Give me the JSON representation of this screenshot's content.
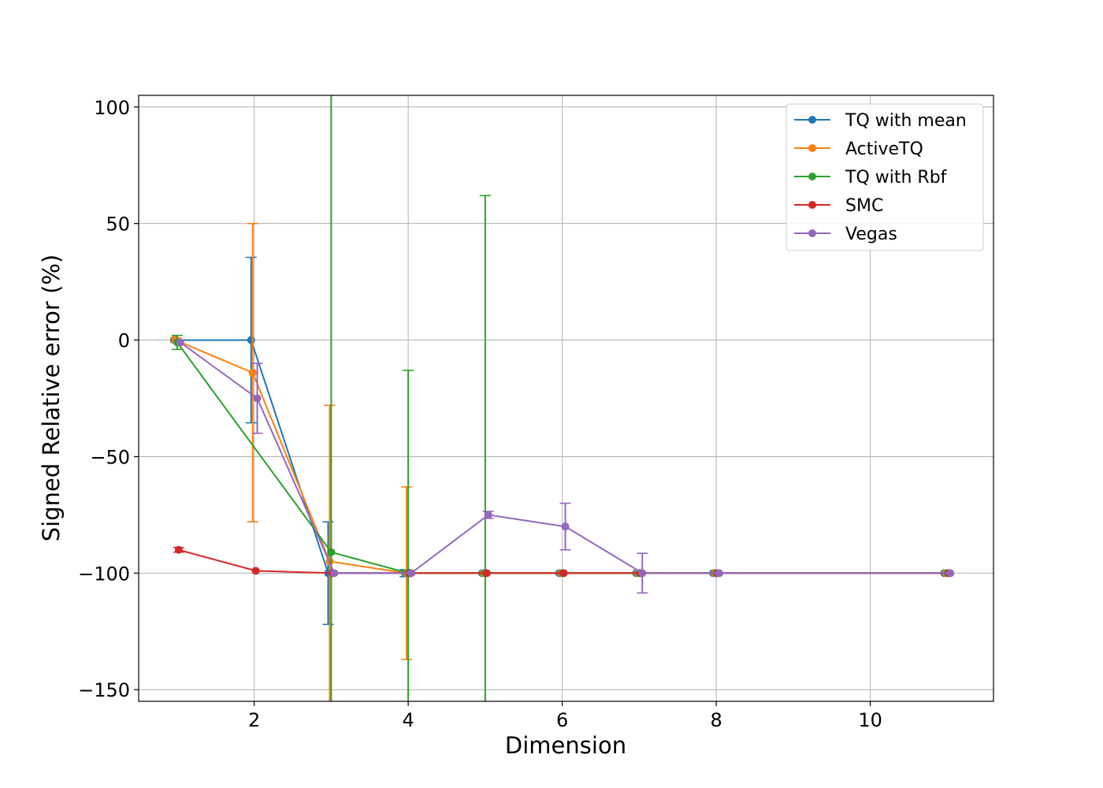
{
  "chart_data": {
    "type": "line",
    "title": "",
    "xlabel": "Dimension",
    "ylabel": "Signed Relative error (%)",
    "xlim": [
      0.5,
      11.6
    ],
    "ylim": [
      -155,
      105
    ],
    "xticks": [
      2,
      4,
      6,
      8,
      10
    ],
    "yticks": [
      100,
      50,
      0,
      -50,
      -100,
      -150
    ],
    "grid": true,
    "legend_position": "top-right",
    "series": [
      {
        "name": "TQ with mean",
        "color": "#1f77b4",
        "points": [
          {
            "x": 0.96,
            "y": 0,
            "err": 0
          },
          {
            "x": 1.96,
            "y": 0,
            "err": 35.5
          },
          {
            "x": 2.96,
            "y": -100,
            "err": 22
          },
          {
            "x": 3.96,
            "y": -100,
            "err": 1.5
          },
          {
            "x": 4.96,
            "y": -100,
            "err": 0
          },
          {
            "x": 5.96,
            "y": -100,
            "err": 0
          },
          {
            "x": 6.96,
            "y": -100,
            "err": 0
          },
          {
            "x": 7.96,
            "y": -100,
            "err": 0
          },
          {
            "x": 10.96,
            "y": -100,
            "err": 0
          }
        ]
      },
      {
        "name": "ActiveTQ",
        "color": "#ff7f0e",
        "points": [
          {
            "x": 0.98,
            "y": 0,
            "err": 1
          },
          {
            "x": 1.98,
            "y": -14,
            "err": 64
          },
          {
            "x": 2.98,
            "y": -95,
            "err": 67
          },
          {
            "x": 3.98,
            "y": -100,
            "err": 37
          },
          {
            "x": 4.98,
            "y": -100,
            "err": 0
          },
          {
            "x": 5.98,
            "y": -100,
            "err": 0
          },
          {
            "x": 6.98,
            "y": -100,
            "err": 0
          },
          {
            "x": 7.98,
            "y": -100,
            "err": 0
          },
          {
            "x": 10.98,
            "y": -100,
            "err": 0
          }
        ]
      },
      {
        "name": "TQ with Rbf",
        "color": "#2ca02c",
        "points": [
          {
            "x": 1.0,
            "y": -1,
            "err": 3
          },
          {
            "x": 3.0,
            "y": -91,
            "err": 200
          },
          {
            "x": 4.0,
            "y": -100,
            "err": 87
          },
          {
            "x": 5.0,
            "y": -100,
            "err": 162
          },
          {
            "x": 6.0,
            "y": -100,
            "err": 0
          },
          {
            "x": 7.0,
            "y": -100,
            "err": 0
          },
          {
            "x": 8.0,
            "y": -100,
            "err": 0
          },
          {
            "x": 11.0,
            "y": -100,
            "err": 0
          }
        ]
      },
      {
        "name": "SMC",
        "color": "#d62728",
        "points": [
          {
            "x": 1.02,
            "y": -90,
            "err": 1
          },
          {
            "x": 2.02,
            "y": -99,
            "err": 0
          },
          {
            "x": 3.02,
            "y": -100,
            "err": 0
          },
          {
            "x": 4.02,
            "y": -100,
            "err": 0
          },
          {
            "x": 5.02,
            "y": -100,
            "err": 0
          },
          {
            "x": 6.02,
            "y": -100,
            "err": 0
          },
          {
            "x": 7.02,
            "y": -100,
            "err": 0
          },
          {
            "x": 8.02,
            "y": -100,
            "err": 0
          },
          {
            "x": 11.02,
            "y": -100,
            "err": 0
          }
        ]
      },
      {
        "name": "Vegas",
        "color": "#9467bd",
        "points": [
          {
            "x": 1.04,
            "y": -1,
            "err": 0
          },
          {
            "x": 2.04,
            "y": -25,
            "err": 15
          },
          {
            "x": 3.04,
            "y": -100,
            "err": 0
          },
          {
            "x": 4.04,
            "y": -100,
            "err": 0
          },
          {
            "x": 5.04,
            "y": -75,
            "err": 1.5
          },
          {
            "x": 6.04,
            "y": -80,
            "err": 10
          },
          {
            "x": 7.04,
            "y": -100,
            "err": 8.5
          },
          {
            "x": 8.04,
            "y": -100,
            "err": 0
          },
          {
            "x": 11.04,
            "y": -100,
            "err": 0
          }
        ]
      }
    ]
  }
}
